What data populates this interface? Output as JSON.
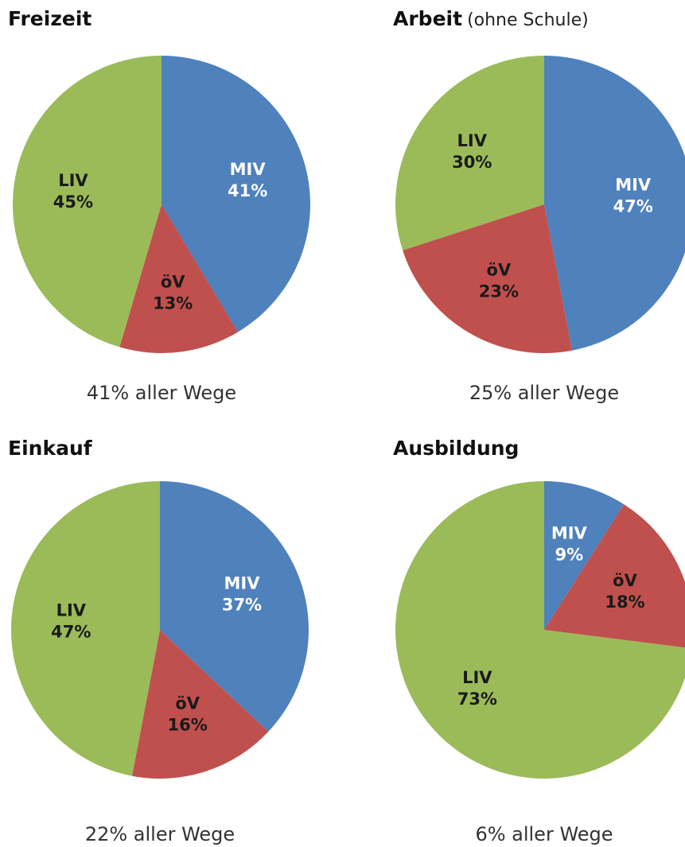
{
  "chart_data": [
    {
      "type": "pie",
      "title": "Freizeit",
      "categories": [
        "MIV",
        "öV",
        "LIV"
      ],
      "values": [
        41,
        13,
        45
      ],
      "value_labels": [
        "41%",
        "13%",
        "45%"
      ],
      "colors": [
        "#4f81bd",
        "#c0504d",
        "#9bbb59"
      ],
      "label_colors": [
        "#ffffff",
        "#1a1a1a",
        "#1a1a1a"
      ],
      "note": "41% aller Wege"
    },
    {
      "type": "pie",
      "title": "Arbeit",
      "subtitle": "(ohne Schule)",
      "categories": [
        "MIV",
        "öV",
        "LIV"
      ],
      "values": [
        47,
        23,
        30
      ],
      "value_labels": [
        "47%",
        "23%",
        "30%"
      ],
      "colors": [
        "#4f81bd",
        "#c0504d",
        "#9bbb59"
      ],
      "label_colors": [
        "#ffffff",
        "#1a1a1a",
        "#1a1a1a"
      ],
      "note": "25% aller Wege"
    },
    {
      "type": "pie",
      "title": "Einkauf",
      "categories": [
        "MIV",
        "öV",
        "LIV"
      ],
      "values": [
        37,
        16,
        47
      ],
      "value_labels": [
        "37%",
        "16%",
        "47%"
      ],
      "colors": [
        "#4f81bd",
        "#c0504d",
        "#9bbb59"
      ],
      "label_colors": [
        "#ffffff",
        "#1a1a1a",
        "#1a1a1a"
      ],
      "note": "22% aller Wege"
    },
    {
      "type": "pie",
      "title": "Ausbildung",
      "categories": [
        "MIV",
        "öV",
        "LIV"
      ],
      "values": [
        9,
        18,
        73
      ],
      "value_labels": [
        "9%",
        "18%",
        "73%"
      ],
      "colors": [
        "#4f81bd",
        "#c0504d",
        "#9bbb59"
      ],
      "label_colors": [
        "#ffffff",
        "#1a1a1a",
        "#1a1a1a"
      ],
      "note": "6% aller Wege"
    }
  ]
}
